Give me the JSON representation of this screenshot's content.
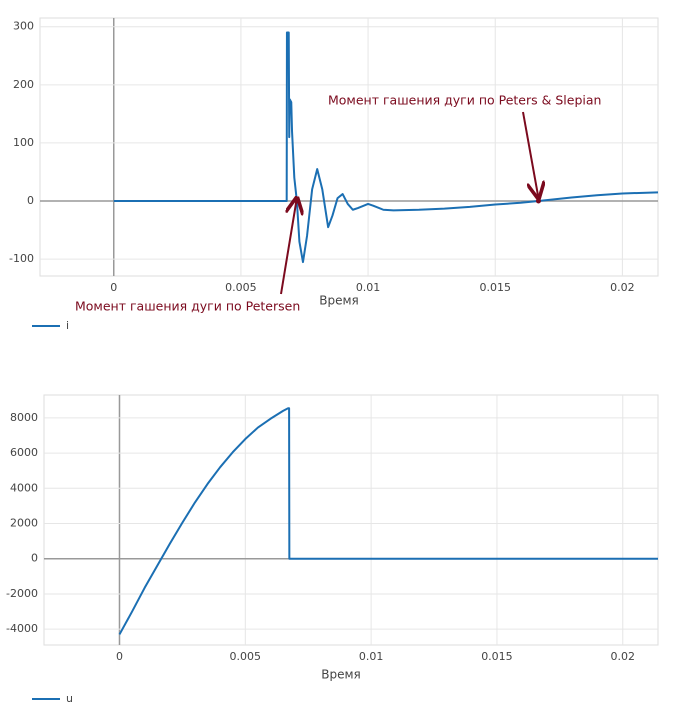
{
  "chart_data": [
    {
      "type": "line",
      "x_label": "Время",
      "x": [
        0,
        0.0068,
        0.00681,
        0.00688,
        0.0069,
        0.00692,
        0.00698,
        0.00701,
        0.0071,
        0.0072,
        0.0073,
        0.00744,
        0.0076,
        0.0078,
        0.008,
        0.0082,
        0.00843,
        0.0086,
        0.0088,
        0.009,
        0.0092,
        0.0094,
        0.0096,
        0.01,
        0.0102,
        0.0106,
        0.011,
        0.012,
        0.013,
        0.014,
        0.015,
        0.016,
        0.0167,
        0.018,
        0.019,
        0.02,
        0.0214
      ],
      "series": [
        {
          "name": "i",
          "color": "#1b6fb3",
          "values": [
            0,
            0,
            290,
            290,
            110,
            175,
            170,
            120,
            40,
            0,
            -70,
            -105,
            -60,
            20,
            55,
            20,
            -45,
            -25,
            5,
            12,
            -5,
            -15,
            -12,
            -5,
            -8,
            -15,
            -16,
            -15,
            -13,
            -10,
            -6,
            -3,
            0,
            6,
            10,
            13,
            15
          ]
        }
      ],
      "xlim": [
        -0.0029,
        0.0214
      ],
      "ylim": [
        -129,
        315
      ],
      "xticks": [
        0,
        0.005,
        0.01,
        0.015,
        0.02
      ],
      "yticks": [
        -100,
        0,
        100,
        200,
        300
      ],
      "grid": true,
      "legend": "bottom-left",
      "annotations": [
        {
          "text": "Момент гашения дуги по Petersen",
          "x": 0.0072,
          "y": 0,
          "color": "#7b0a1e"
        },
        {
          "text": "Момент гашения дуги по Peters & Slepian",
          "x": 0.0167,
          "y": 0,
          "color": "#7b0a1e"
        }
      ]
    },
    {
      "type": "line",
      "x_label": "Время",
      "x": [
        0,
        0.0005,
        0.001,
        0.0015,
        0.002,
        0.0025,
        0.003,
        0.0035,
        0.004,
        0.0045,
        0.005,
        0.0055,
        0.006,
        0.0065,
        0.0067,
        0.00674,
        0.00675,
        0.0214
      ],
      "series": [
        {
          "name": "u",
          "color": "#1b6fb3",
          "values": [
            -4300,
            -3000,
            -1650,
            -400,
            850,
            2050,
            3200,
            4250,
            5200,
            6050,
            6800,
            7450,
            7950,
            8400,
            8550,
            8550,
            0,
            0
          ]
        }
      ],
      "xlim": [
        -0.003,
        0.0214
      ],
      "ylim": [
        -4900,
        9300
      ],
      "xticks": [
        0,
        0.005,
        0.01,
        0.015,
        0.02
      ],
      "yticks": [
        -4000,
        -2000,
        0,
        2000,
        4000,
        6000,
        8000
      ],
      "grid": true,
      "legend": "bottom-left"
    }
  ]
}
